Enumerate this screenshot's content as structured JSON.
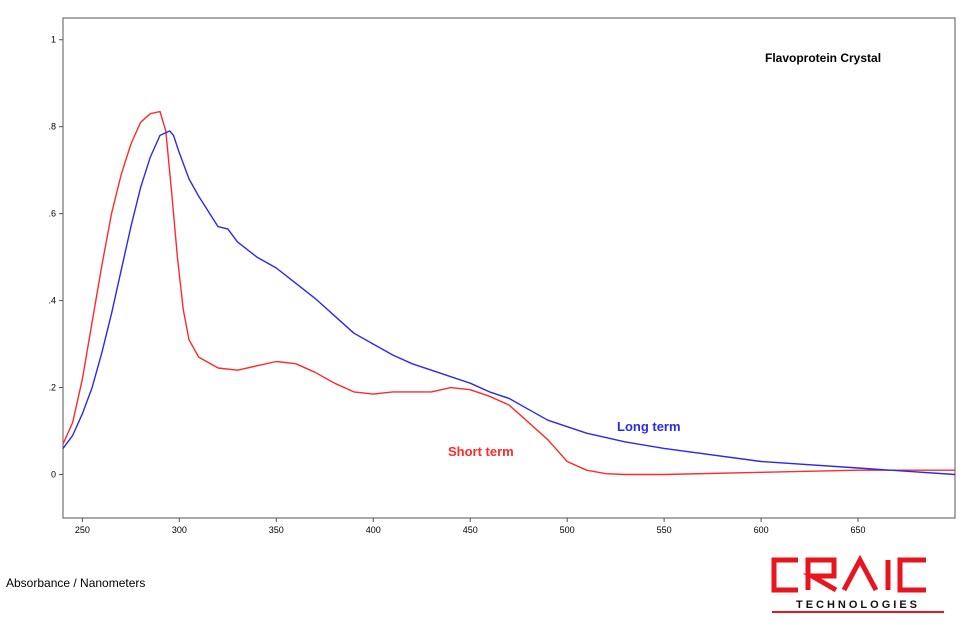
{
  "chart_data": {
    "type": "line",
    "title": "Flavoprotein Crystal",
    "xlabel": "",
    "ylabel": "",
    "xlim": [
      240,
      700
    ],
    "ylim": [
      -0.1,
      1.05
    ],
    "x_ticks": [
      250,
      300,
      350,
      400,
      450,
      500,
      550,
      600,
      650
    ],
    "x_tick_labels": [
      "250",
      "300",
      "350",
      "400",
      "450",
      "500",
      "550",
      "600",
      "650"
    ],
    "y_ticks": [
      0,
      0.2,
      0.4,
      0.6,
      0.8,
      1
    ],
    "y_tick_labels": [
      "0",
      ".2",
      ".4",
      ".6",
      ".8",
      "1"
    ],
    "grid": false,
    "series": [
      {
        "name": "Short term",
        "color": "#ff2a2a",
        "x": [
          240,
          245,
          250,
          255,
          260,
          265,
          270,
          275,
          280,
          285,
          290,
          293,
          296,
          299,
          302,
          305,
          310,
          320,
          330,
          340,
          350,
          360,
          370,
          380,
          390,
          400,
          410,
          420,
          430,
          440,
          450,
          460,
          470,
          480,
          490,
          500,
          510,
          520,
          530,
          550,
          600,
          650,
          700
        ],
        "y": [
          0.07,
          0.12,
          0.22,
          0.35,
          0.48,
          0.6,
          0.69,
          0.76,
          0.81,
          0.83,
          0.835,
          0.79,
          0.65,
          0.5,
          0.38,
          0.31,
          0.27,
          0.245,
          0.24,
          0.25,
          0.26,
          0.255,
          0.235,
          0.21,
          0.19,
          0.185,
          0.19,
          0.19,
          0.19,
          0.2,
          0.195,
          0.18,
          0.16,
          0.12,
          0.08,
          0.03,
          0.01,
          0.002,
          0.0,
          0.0,
          0.005,
          0.01,
          0.01
        ]
      },
      {
        "name": "Long term",
        "color": "#2a2aee",
        "x": [
          240,
          245,
          250,
          255,
          260,
          265,
          270,
          275,
          280,
          285,
          290,
          295,
          297,
          300,
          305,
          310,
          315,
          320,
          325,
          330,
          340,
          350,
          360,
          370,
          380,
          390,
          400,
          410,
          420,
          430,
          440,
          450,
          460,
          470,
          480,
          490,
          500,
          510,
          520,
          530,
          550,
          600,
          650,
          700
        ],
        "y": [
          0.06,
          0.09,
          0.14,
          0.2,
          0.28,
          0.37,
          0.47,
          0.57,
          0.66,
          0.73,
          0.78,
          0.79,
          0.78,
          0.74,
          0.68,
          0.64,
          0.605,
          0.57,
          0.565,
          0.535,
          0.5,
          0.475,
          0.44,
          0.405,
          0.365,
          0.325,
          0.3,
          0.275,
          0.255,
          0.24,
          0.225,
          0.21,
          0.19,
          0.175,
          0.15,
          0.125,
          0.11,
          0.095,
          0.085,
          0.075,
          0.06,
          0.03,
          0.015,
          0.0
        ]
      }
    ]
  },
  "annotations": {
    "short_term": "Short term",
    "long_term": "Long term"
  },
  "footer": {
    "label": "Absorbance / Nanometers"
  },
  "logo": {
    "brand": "CRAIC",
    "sub": "TECHNOLOGIES",
    "color": "#e8141e"
  }
}
